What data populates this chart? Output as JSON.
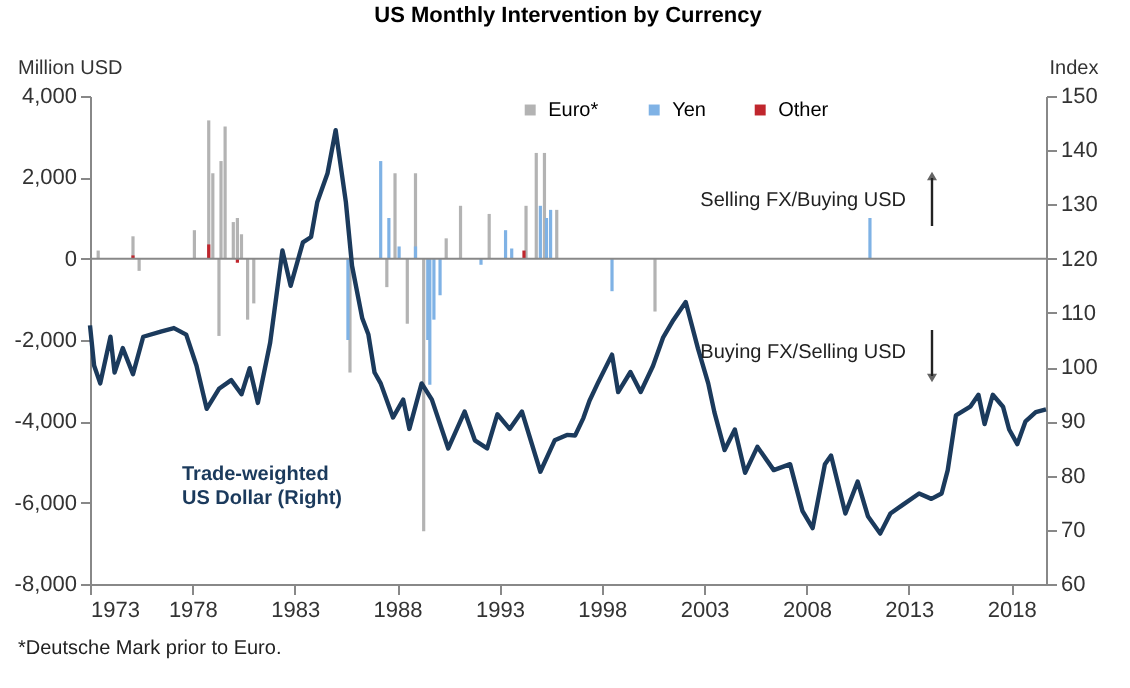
{
  "chart_data": {
    "type": "bar",
    "title": "US Monthly Intervention by Currency",
    "ylabel": "Million USD",
    "y2label": "Index",
    "xlim": [
      1973,
      2019.7
    ],
    "xticks": [
      1973,
      1978,
      1983,
      1988,
      1993,
      1998,
      2003,
      2008,
      2013,
      2018
    ],
    "ylim": [
      -8000,
      4000
    ],
    "yticks": [
      {
        "value": -8000,
        "label": "-8,000"
      },
      {
        "value": -6000,
        "label": "-6,000"
      },
      {
        "value": -4000,
        "label": "-4,000"
      },
      {
        "value": -2000,
        "label": "-2,000"
      },
      0,
      {
        "value": 2000,
        "label": "2,000"
      },
      {
        "value": 4000,
        "label": "4,000"
      }
    ],
    "ref_lines": [
      {
        "axis": "y",
        "value": 0,
        "color": "#888888"
      }
    ],
    "y2lim": [
      60,
      150
    ],
    "y2ticks": [
      60,
      70,
      80,
      90,
      100,
      110,
      120,
      130,
      140,
      150
    ],
    "grid": false,
    "legend": "top",
    "series": [
      {
        "name": "Euro*",
        "color": "#b3b3b3",
        "type": "bar",
        "x": [
          1973.4,
          1975.1,
          1975.4,
          1978.1,
          1978.8,
          1979.0,
          1979.3,
          1979.4,
          1979.6,
          1980.0,
          1980.2,
          1980.4,
          1980.7,
          1981.0,
          1985.7,
          1987.5,
          1987.9,
          1988.5,
          1988.9,
          1989.3,
          1990.4,
          1991.1,
          1992.5,
          1994.3,
          1994.8,
          1995.2,
          1995.8,
          2000.6
        ],
        "values": [
          200,
          550,
          -300,
          700,
          3400,
          2100,
          -1900,
          2400,
          3250,
          900,
          1000,
          600,
          -1500,
          -1100,
          -2800,
          -700,
          2100,
          -1600,
          2100,
          -6700,
          500,
          1300,
          1100,
          1300,
          2600,
          2600,
          1200,
          -1300
        ]
      },
      {
        "name": "Yen",
        "color": "#7fb2e5",
        "type": "bar",
        "x": [
          1985.6,
          1987.2,
          1987.6,
          1988.1,
          1988.9,
          1989.5,
          1989.6,
          1989.8,
          1990.1,
          1992.1,
          1993.3,
          1993.6,
          1995.0,
          1995.3,
          1995.5,
          1998.5,
          2011.1
        ],
        "values": [
          -2000,
          2400,
          1000,
          300,
          300,
          -2000,
          -3100,
          -1500,
          -900,
          -150,
          700,
          250,
          1300,
          1000,
          1200,
          -800,
          1000
        ]
      },
      {
        "name": "Other",
        "color": "#c0262d",
        "type": "bar",
        "x": [
          1975.1,
          1978.8,
          1980.2,
          1994.2
        ],
        "values": [
          80,
          350,
          -100,
          200
        ]
      },
      {
        "name": "Trade-weighted\nUS Dollar (Right)",
        "color": "#1b3a5c",
        "type": "line",
        "axis": "y2",
        "x": [
          1973.0,
          1973.2,
          1973.5,
          1974.0,
          1974.2,
          1974.6,
          1975.1,
          1975.6,
          1976.5,
          1977.1,
          1977.7,
          1978.2,
          1978.7,
          1979.3,
          1979.9,
          1980.4,
          1980.8,
          1981.2,
          1981.8,
          1982.4,
          1982.8,
          1983.4,
          1983.8,
          1984.1,
          1984.6,
          1985.0,
          1985.1,
          1985.5,
          1985.8,
          1986.3,
          1986.6,
          1986.9,
          1987.2,
          1987.8,
          1988.3,
          1988.6,
          1989.2,
          1989.7,
          1990.5,
          1991.3,
          1991.8,
          1992.4,
          1992.9,
          1993.5,
          1994.1,
          1995.0,
          1995.7,
          1996.3,
          1996.7,
          1997.1,
          1997.4,
          1997.8,
          1998.5,
          1998.8,
          1999.4,
          1999.9,
          2000.5,
          2001.0,
          2001.5,
          2002.1,
          2002.7,
          2003.2,
          2003.5,
          2004.0,
          2004.5,
          2005.0,
          2005.6,
          2006.4,
          2007.2,
          2007.8,
          2008.3,
          2008.9,
          2009.2,
          2009.9,
          2010.5,
          2011.0,
          2011.6,
          2012.1,
          2012.7,
          2013.5,
          2014.1,
          2014.6,
          2014.9,
          2015.3,
          2016.0,
          2016.4,
          2016.7,
          2017.1,
          2017.6,
          2017.9,
          2018.3,
          2018.7,
          2019.2,
          2019.7
        ],
        "values": [
          107.7,
          100.3,
          97,
          105.6,
          99,
          103.5,
          98.7,
          105.6,
          106.6,
          107.2,
          106,
          100.3,
          92.3,
          96,
          97.6,
          95,
          99.8,
          93.4,
          104.5,
          121.5,
          115,
          123,
          124,
          130.4,
          135.7,
          143.7,
          141,
          130.4,
          118.7,
          109,
          106,
          99,
          97,
          90.7,
          94,
          88.6,
          97,
          94,
          85,
          91.8,
          86.5,
          85,
          91.3,
          88.6,
          91.8,
          80.7,
          86.5,
          87.5,
          87.4,
          90.6,
          93.8,
          97,
          102.3,
          95.4,
          99.1,
          95.4,
          100.2,
          105.5,
          108.7,
          112,
          103.4,
          97,
          91.7,
          84.7,
          88.5,
          80.5,
          85.3,
          81,
          82.1,
          73.5,
          70.3,
          82.1,
          83.7,
          73,
          78.9,
          72.5,
          69.3,
          73,
          74.6,
          76.7,
          75.7,
          76.7,
          81,
          91.1,
          92.7,
          94.9,
          89.5,
          94.9,
          92.7,
          88.5,
          85.8,
          90,
          91.7,
          92.2
        ]
      }
    ],
    "annotations": [
      "Selling FX/Buying USD",
      "Buying FX/Selling USD",
      "*Deutsche Mark prior to Euro."
    ]
  }
}
